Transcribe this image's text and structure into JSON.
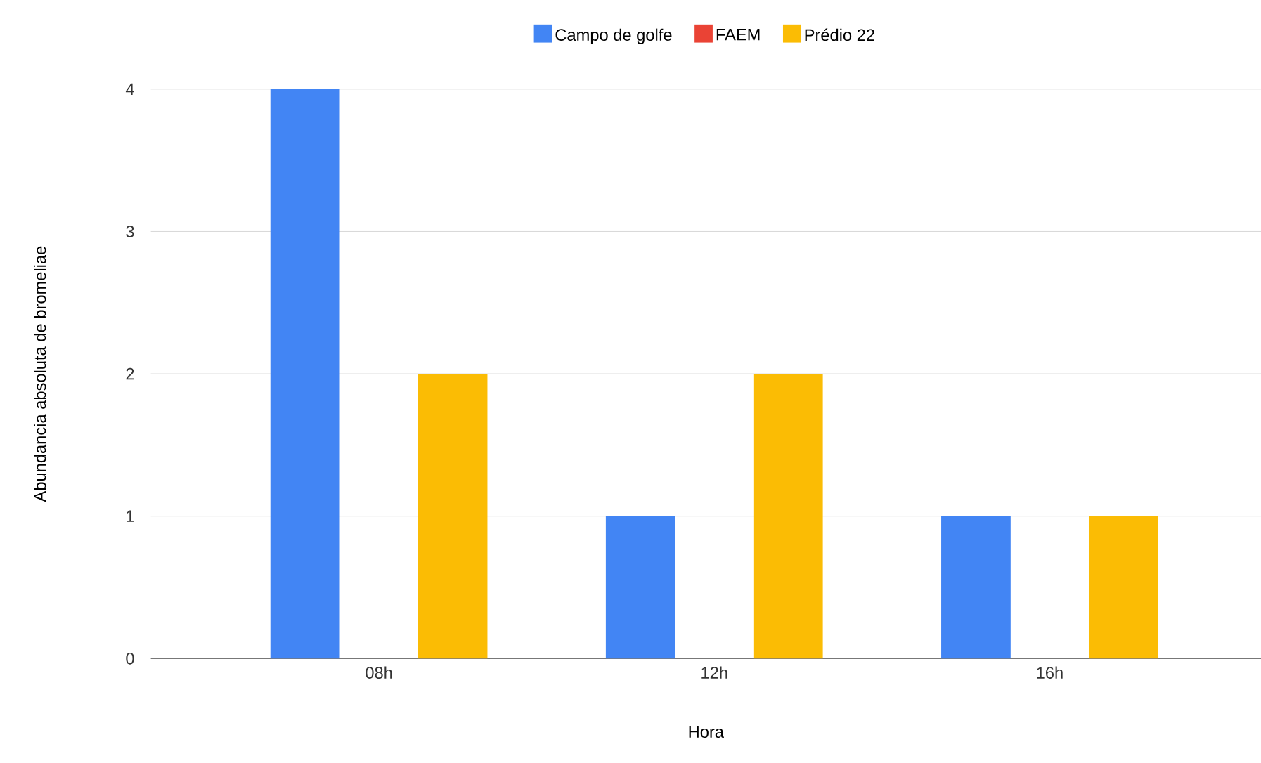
{
  "chart_data": {
    "type": "bar",
    "xlabel": "Hora",
    "ylabel": "Abundancia absoluta de bromeliae",
    "categories": [
      "08h",
      "12h",
      "16h"
    ],
    "series": [
      {
        "name": "Campo de golfe",
        "color": "#4285f4",
        "values": [
          4,
          1,
          1
        ]
      },
      {
        "name": "FAEM",
        "color": "#ea4335",
        "values": [
          0,
          0,
          0
        ]
      },
      {
        "name": "Prédio 22",
        "color": "#fbbc04",
        "values": [
          2,
          2,
          1
        ]
      }
    ],
    "ylim": [
      0,
      4
    ],
    "yticks": [
      0,
      1,
      2,
      3,
      4
    ],
    "grid": "y",
    "legend": "top"
  }
}
